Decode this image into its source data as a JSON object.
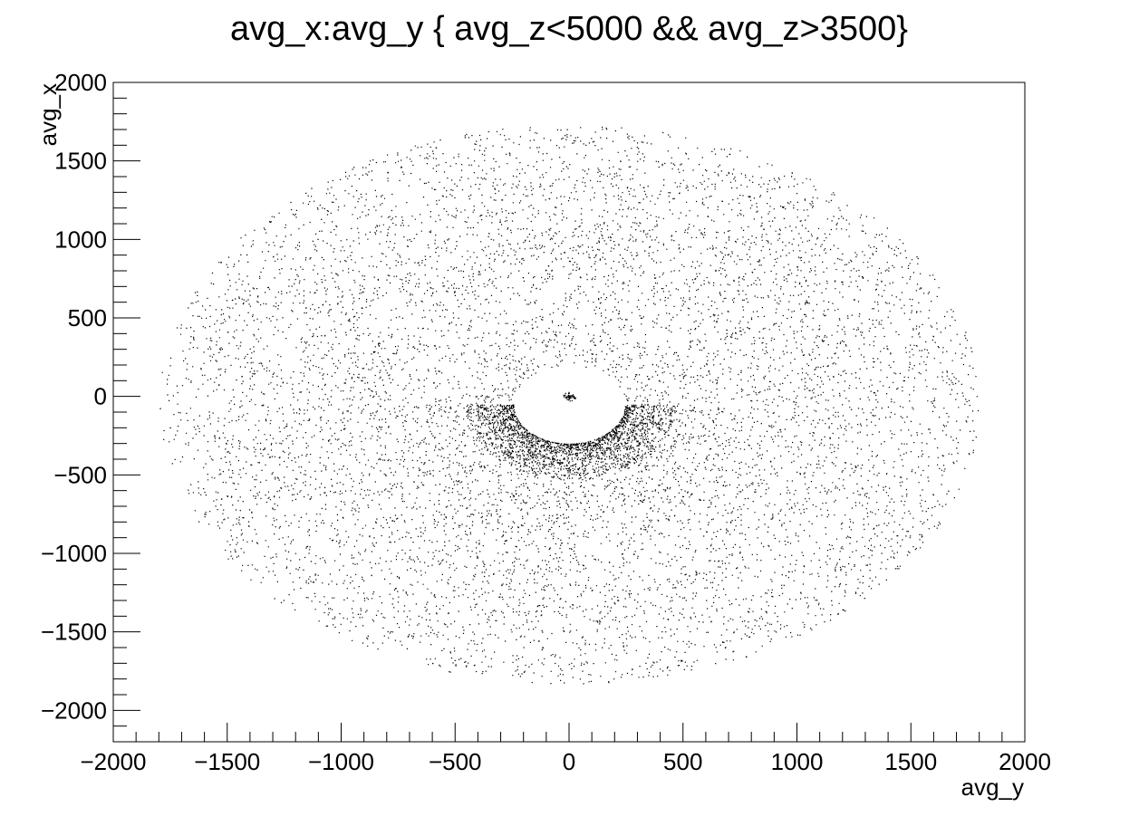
{
  "chart_data": {
    "type": "scatter",
    "title": "avg_x:avg_y { avg_z<5000 && avg_z>3500}",
    "xlabel": "avg_y",
    "ylabel": "avg_x",
    "xlim": [
      -2000,
      2000
    ],
    "ylim": [
      -2200,
      2000
    ],
    "x_ticks": [
      -2000,
      -1500,
      -1000,
      -500,
      0,
      500,
      1000,
      1500,
      2000
    ],
    "y_ticks": [
      -2000,
      -1500,
      -1000,
      -500,
      0,
      500,
      1000,
      1500,
      2000
    ],
    "x_tick_labels": [
      "−2000",
      "−1500",
      "−1000",
      "−500",
      "0",
      "500",
      "1000",
      "1500",
      "2000"
    ],
    "y_tick_labels": [
      "−2000",
      "−1500",
      "−1000",
      "−500",
      "0",
      "500",
      "1000",
      "1500",
      "2000"
    ],
    "grid": false,
    "legend": "none",
    "marker_color": "#000000",
    "distribution": {
      "description_note": "Elliptical point cloud of individual detector hits",
      "outer_semi_axis_x": 1800,
      "outer_semi_axis_y": 1780,
      "center_y": -50,
      "hole_center": [
        0,
        -50
      ],
      "hole_semi_axis_x": 245,
      "hole_semi_axis_y": 250,
      "inner_cluster_center": [
        0,
        0
      ],
      "inner_cluster_radius": 30,
      "density_bias": "higher density just below the central hole"
    }
  }
}
